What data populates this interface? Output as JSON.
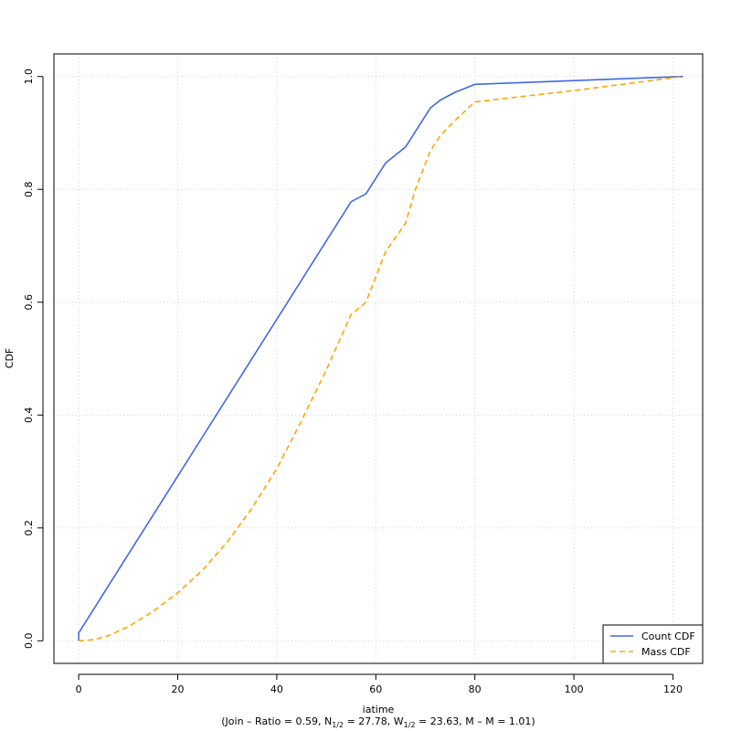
{
  "chart_data": {
    "type": "line",
    "xlabel": "iatime",
    "ylabel": "CDF",
    "subtitle": {
      "prefix": "(Join – Ratio = 0.59, N",
      "n_sub": "1/2",
      "mid": " = 27.78, W",
      "w_sub": "1/2",
      "suffix": " = 23.63, M – M = 1.01)"
    },
    "xlim": [
      -5,
      126
    ],
    "ylim": [
      -0.04,
      1.04
    ],
    "xticks": [
      0,
      20,
      40,
      60,
      80,
      100,
      120
    ],
    "yticks": [
      0.0,
      0.2,
      0.4,
      0.6,
      0.8,
      1.0
    ],
    "xtick_labels": [
      "0",
      "20",
      "40",
      "60",
      "80",
      "100",
      "120"
    ],
    "ytick_labels": [
      "0.0",
      "0.2",
      "0.4",
      "0.6",
      "0.8",
      "1.0"
    ],
    "grid": true,
    "legend_position": "bottom-right",
    "series": [
      {
        "name": "Count CDF",
        "color": "#4169e1",
        "dash": "solid",
        "x": [
          0,
          0,
          55,
          58,
          62,
          66,
          71,
          73,
          76,
          80,
          122
        ],
        "y": [
          0.0,
          0.014,
          0.778,
          0.792,
          0.847,
          0.875,
          0.944,
          0.958,
          0.972,
          0.986,
          1.0
        ]
      },
      {
        "name": "Mass CDF",
        "color": "#ffa500",
        "dash": "dashed",
        "x": [
          0,
          3,
          6,
          10,
          15,
          20,
          25,
          30,
          35,
          40,
          45,
          50,
          55,
          58,
          62,
          66,
          68,
          71,
          73,
          76,
          80,
          100,
          122
        ],
        "y": [
          0.0,
          0.002,
          0.009,
          0.025,
          0.052,
          0.085,
          0.125,
          0.175,
          0.235,
          0.305,
          0.39,
          0.48,
          0.578,
          0.6,
          0.69,
          0.74,
          0.8,
          0.868,
          0.895,
          0.922,
          0.955,
          0.975,
          1.0
        ]
      }
    ]
  }
}
